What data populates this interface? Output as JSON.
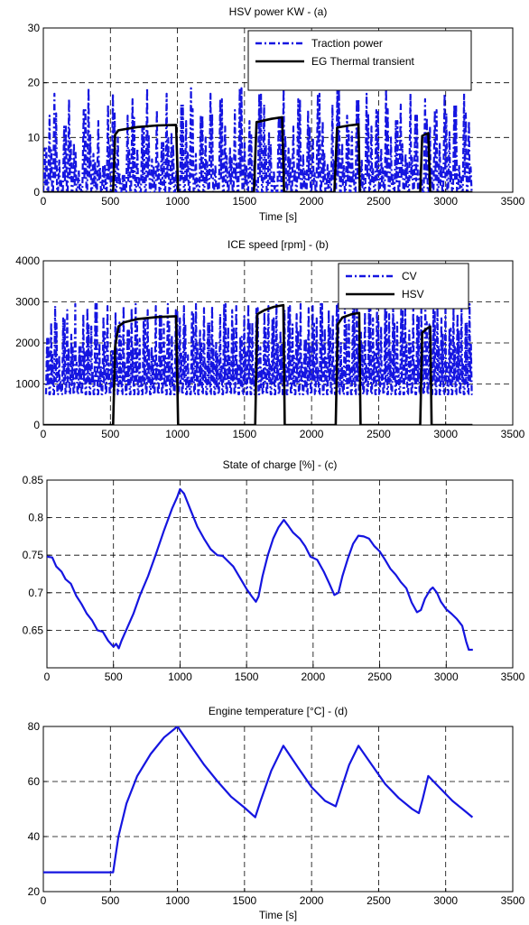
{
  "chart_data": [
    {
      "type": "line",
      "title": "HSV power KW - (a)",
      "xlabel": "Time [s]",
      "ylabel": "",
      "xlim": [
        0,
        3500
      ],
      "ylim": [
        0,
        30
      ],
      "xticks": [
        "0",
        "500",
        "1000",
        "1500",
        "2000",
        "2500",
        "3000",
        "3500"
      ],
      "yticks": [
        "0",
        "10",
        "20",
        "30"
      ],
      "grid": true,
      "legend_position": "top-right",
      "series": [
        {
          "name": "Traction power",
          "color": "#1515e0",
          "style": "dashdot",
          "kind": "oscillating",
          "x_range": [
            0,
            3200
          ],
          "period": 38,
          "low": 0,
          "peaks": [
            8,
            14,
            18,
            6,
            12,
            17,
            9,
            4,
            15,
            19,
            7,
            13,
            5,
            16,
            18,
            10,
            3,
            14,
            17,
            8,
            12,
            19,
            6,
            15,
            9,
            18,
            11,
            4,
            16,
            13,
            19,
            7,
            14,
            10,
            18,
            5,
            17,
            12,
            8,
            15,
            19,
            9,
            13,
            6,
            18,
            16,
            11,
            4,
            14,
            19,
            8,
            12,
            17,
            7,
            15,
            10,
            18,
            13,
            5,
            16,
            19,
            9,
            14,
            11,
            17,
            6,
            18,
            12,
            15,
            8,
            19,
            10,
            13,
            16,
            7,
            18,
            14,
            4,
            17,
            12,
            15,
            9,
            18,
            11,
            16,
            5,
            18,
            13
          ]
        },
        {
          "name": "EG Thermal transient",
          "color": "#000000",
          "style": "solid",
          "points": [
            [
              0,
              0
            ],
            [
              500,
              0
            ],
            [
              520,
              0
            ],
            [
              535,
              10.5
            ],
            [
              560,
              11.3
            ],
            [
              700,
              11.9
            ],
            [
              850,
              12.2
            ],
            [
              990,
              12.3
            ],
            [
              1005,
              0
            ],
            [
              1570,
              0
            ],
            [
              1590,
              12.8
            ],
            [
              1700,
              13.4
            ],
            [
              1780,
              13.7
            ],
            [
              1795,
              0
            ],
            [
              2170,
              0
            ],
            [
              2190,
              11.8
            ],
            [
              2280,
              12.2
            ],
            [
              2350,
              12.4
            ],
            [
              2360,
              0
            ],
            [
              2810,
              0
            ],
            [
              2825,
              10.3
            ],
            [
              2870,
              10.8
            ],
            [
              2885,
              0
            ],
            [
              3200,
              0
            ]
          ]
        }
      ]
    },
    {
      "type": "line",
      "title": "ICE speed [rpm] - (b)",
      "xlabel": "",
      "ylabel": "",
      "xlim": [
        0,
        3500
      ],
      "ylim": [
        0,
        4000
      ],
      "xticks": [
        "0",
        "500",
        "1000",
        "1500",
        "2000",
        "2500",
        "3000",
        "3500"
      ],
      "yticks": [
        "0",
        "1000",
        "2000",
        "3000",
        "4000"
      ],
      "grid": true,
      "legend_position": "top-right",
      "series": [
        {
          "name": "CV",
          "color": "#1515e0",
          "style": "dashdot",
          "kind": "oscillating",
          "x_range": [
            20,
            3200
          ],
          "period": 30,
          "low": 750,
          "peaks": [
            2100,
            2500,
            2900,
            1700,
            2600,
            2800,
            2200,
            2950,
            1900,
            2700,
            2850,
            2400,
            2950,
            2000,
            2650,
            2900,
            1800,
            2750,
            2500,
            2900,
            2300,
            2850,
            2950,
            2100,
            2600,
            2800,
            1900,
            2900,
            2700,
            2450,
            2950,
            2200,
            2800,
            2600,
            2900,
            1700,
            2750,
            2950,
            2300,
            2850,
            2500,
            2900,
            2000,
            2700,
            2950,
            2400,
            2800,
            2900,
            2150,
            2650,
            2950,
            2500,
            2850,
            1900,
            2750,
            2900,
            2600,
            2950,
            2300,
            2800,
            2900,
            2450,
            2700,
            2950,
            2100,
            2850,
            2900,
            2600,
            2950,
            2350,
            2800,
            2700,
            2950,
            2000,
            2900,
            2550,
            2850,
            2950,
            2250,
            2750,
            2900,
            2600,
            2950,
            2400,
            2850,
            2700,
            2900,
            2500,
            2800,
            2950,
            2300,
            2900,
            2650,
            2850,
            2950,
            2450,
            2800,
            2900,
            2600,
            2950,
            2350,
            2850,
            2700,
            2900,
            2500,
            2950
          ]
        },
        {
          "name": "HSV",
          "color": "#000000",
          "style": "solid",
          "points": [
            [
              0,
              0
            ],
            [
              510,
              0
            ],
            [
              520,
              0
            ],
            [
              535,
              1900
            ],
            [
              560,
              2400
            ],
            [
              600,
              2500
            ],
            [
              700,
              2580
            ],
            [
              850,
              2630
            ],
            [
              990,
              2650
            ],
            [
              1005,
              0
            ],
            [
              1580,
              0
            ],
            [
              1595,
              2700
            ],
            [
              1650,
              2800
            ],
            [
              1720,
              2880
            ],
            [
              1790,
              2920
            ],
            [
              1800,
              0
            ],
            [
              2180,
              0
            ],
            [
              2195,
              2450
            ],
            [
              2230,
              2620
            ],
            [
              2300,
              2700
            ],
            [
              2355,
              2730
            ],
            [
              2365,
              0
            ],
            [
              2810,
              0
            ],
            [
              2825,
              2250
            ],
            [
              2860,
              2350
            ],
            [
              2885,
              2400
            ],
            [
              2895,
              0
            ],
            [
              3200,
              0
            ]
          ]
        }
      ]
    },
    {
      "type": "line",
      "title": "State of charge [%] - (c)",
      "xlabel": "",
      "ylabel": "",
      "xlim": [
        0,
        3500
      ],
      "ylim": [
        0.6,
        0.85
      ],
      "xticks": [
        "0",
        "500",
        "1000",
        "1500",
        "2000",
        "2500",
        "3000",
        "3500"
      ],
      "yticks": [
        "0.65",
        "0.7",
        "0.75",
        "0.8",
        "0.85"
      ],
      "grid": true,
      "series": [
        {
          "color": "#1515e0",
          "style": "solid",
          "points": [
            [
              0,
              0.748
            ],
            [
              40,
              0.747
            ],
            [
              70,
              0.735
            ],
            [
              110,
              0.728
            ],
            [
              140,
              0.718
            ],
            [
              180,
              0.712
            ],
            [
              220,
              0.696
            ],
            [
              260,
              0.685
            ],
            [
              300,
              0.672
            ],
            [
              340,
              0.663
            ],
            [
              380,
              0.65
            ],
            [
              420,
              0.648
            ],
            [
              460,
              0.636
            ],
            [
              500,
              0.628
            ],
            [
              520,
              0.632
            ],
            [
              540,
              0.626
            ],
            [
              560,
              0.636
            ],
            [
              600,
              0.652
            ],
            [
              650,
              0.672
            ],
            [
              700,
              0.697
            ],
            [
              760,
              0.722
            ],
            [
              820,
              0.752
            ],
            [
              880,
              0.783
            ],
            [
              940,
              0.812
            ],
            [
              980,
              0.828
            ],
            [
              1000,
              0.838
            ],
            [
              1030,
              0.832
            ],
            [
              1080,
              0.81
            ],
            [
              1130,
              0.788
            ],
            [
              1180,
              0.772
            ],
            [
              1230,
              0.758
            ],
            [
              1280,
              0.75
            ],
            [
              1320,
              0.749
            ],
            [
              1360,
              0.742
            ],
            [
              1400,
              0.735
            ],
            [
              1450,
              0.72
            ],
            [
              1500,
              0.705
            ],
            [
              1540,
              0.695
            ],
            [
              1570,
              0.688
            ],
            [
              1590,
              0.695
            ],
            [
              1620,
              0.722
            ],
            [
              1660,
              0.75
            ],
            [
              1700,
              0.772
            ],
            [
              1740,
              0.787
            ],
            [
              1780,
              0.797
            ],
            [
              1810,
              0.79
            ],
            [
              1850,
              0.78
            ],
            [
              1900,
              0.772
            ],
            [
              1940,
              0.762
            ],
            [
              1980,
              0.748
            ],
            [
              2030,
              0.744
            ],
            [
              2080,
              0.728
            ],
            [
              2120,
              0.713
            ],
            [
              2160,
              0.697
            ],
            [
              2190,
              0.7
            ],
            [
              2220,
              0.722
            ],
            [
              2260,
              0.745
            ],
            [
              2300,
              0.765
            ],
            [
              2340,
              0.776
            ],
            [
              2380,
              0.775
            ],
            [
              2420,
              0.772
            ],
            [
              2460,
              0.762
            ],
            [
              2500,
              0.755
            ],
            [
              2540,
              0.744
            ],
            [
              2580,
              0.732
            ],
            [
              2620,
              0.724
            ],
            [
              2660,
              0.714
            ],
            [
              2700,
              0.706
            ],
            [
              2740,
              0.687
            ],
            [
              2780,
              0.674
            ],
            [
              2810,
              0.677
            ],
            [
              2840,
              0.692
            ],
            [
              2880,
              0.704
            ],
            [
              2900,
              0.707
            ],
            [
              2930,
              0.7
            ],
            [
              2960,
              0.688
            ],
            [
              3000,
              0.678
            ],
            [
              3040,
              0.672
            ],
            [
              3080,
              0.665
            ],
            [
              3120,
              0.656
            ],
            [
              3150,
              0.635
            ],
            [
              3170,
              0.624
            ],
            [
              3200,
              0.624
            ]
          ]
        }
      ]
    },
    {
      "type": "line",
      "title": "Engine temperature [°C] - (d)",
      "xlabel": "Time [s]",
      "ylabel": "",
      "xlim": [
        0,
        3500
      ],
      "ylim": [
        20,
        80
      ],
      "xticks": [
        "0",
        "500",
        "1000",
        "1500",
        "2000",
        "2500",
        "3000",
        "3500"
      ],
      "yticks": [
        "20",
        "40",
        "60",
        "80"
      ],
      "grid": true,
      "series": [
        {
          "color": "#1515e0",
          "style": "solid",
          "points": [
            [
              0,
              27
            ],
            [
              500,
              27
            ],
            [
              520,
              27
            ],
            [
              560,
              40
            ],
            [
              620,
              52
            ],
            [
              700,
              62
            ],
            [
              800,
              70
            ],
            [
              900,
              76
            ],
            [
              1000,
              80
            ],
            [
              1100,
              73
            ],
            [
              1200,
              66
            ],
            [
              1300,
              60
            ],
            [
              1400,
              54.5
            ],
            [
              1500,
              50.5
            ],
            [
              1580,
              47
            ],
            [
              1620,
              53
            ],
            [
              1700,
              64
            ],
            [
              1790,
              73
            ],
            [
              1900,
              65
            ],
            [
              2000,
              58
            ],
            [
              2100,
              53
            ],
            [
              2180,
              51
            ],
            [
              2220,
              57
            ],
            [
              2280,
              66
            ],
            [
              2350,
              73
            ],
            [
              2450,
              66
            ],
            [
              2550,
              59
            ],
            [
              2650,
              54
            ],
            [
              2750,
              50
            ],
            [
              2800,
              48.5
            ],
            [
              2830,
              54
            ],
            [
              2870,
              62
            ],
            [
              2950,
              58
            ],
            [
              3050,
              53
            ],
            [
              3150,
              49
            ],
            [
              3200,
              47
            ]
          ]
        }
      ]
    }
  ]
}
